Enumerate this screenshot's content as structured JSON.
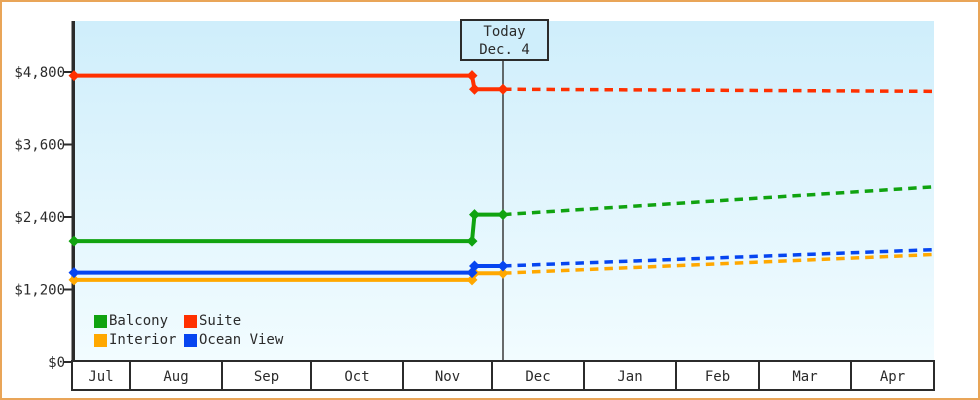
{
  "window": {
    "frame_border_color": "#e9a558",
    "background_color": "#ffffff"
  },
  "chart_data": {
    "type": "line",
    "title": "",
    "description": "Cruise cabin price history (solid lines with step change in late Nov) and dotted price forecast after today (Dec. 4), in USD",
    "today": {
      "line1": "Today",
      "line2": "Dec. 4"
    },
    "y_axis": {
      "tick_labels": [
        "$0",
        "$1,200",
        "$2,400",
        "$3,600",
        "$4,800"
      ],
      "tick_values": [
        0,
        1200,
        2400,
        3600,
        4800
      ],
      "ylim": [
        0,
        4800
      ]
    },
    "x_axis": {
      "month_labels": [
        "Jul",
        "Aug",
        "Sep",
        "Oct",
        "Nov",
        "Dec",
        "Jan",
        "Feb",
        "Mar",
        "Apr"
      ]
    },
    "grid": false,
    "legend_position": "inside bottom-left",
    "legend": {
      "items": [
        "Balcony",
        "Suite",
        "Interior",
        "Ocean View"
      ]
    },
    "series": [
      {
        "name": "Interior",
        "color": "#ffa800",
        "history_price": 1360,
        "change_date": "Nov 24",
        "current_price": 1470,
        "forecast_end_price": 1780,
        "forecast_style": "dotted"
      },
      {
        "name": "Ocean View",
        "color": "#0645f0",
        "history_price": 1480,
        "change_date": "Nov 24",
        "current_price": 1590,
        "forecast_end_price": 1860,
        "forecast_style": "dotted"
      },
      {
        "name": "Balcony",
        "color": "#10a310",
        "history_price": 2000,
        "change_date": "Nov 24",
        "current_price": 2440,
        "forecast_end_price": 2900,
        "forecast_style": "dotted"
      },
      {
        "name": "Suite",
        "color": "#ff3000",
        "history_price": 4740,
        "change_date": "Nov 24",
        "current_price": 4515,
        "forecast_end_price": 4480,
        "forecast_style": "dotted"
      }
    ],
    "colors": {
      "plot_bg_top": "#cfeefb",
      "plot_bg_bottom": "#f2fcff",
      "axis": "#2b2b2b",
      "today_line": "#3a3a3a",
      "month_box_fill": "#ffffff"
    }
  }
}
